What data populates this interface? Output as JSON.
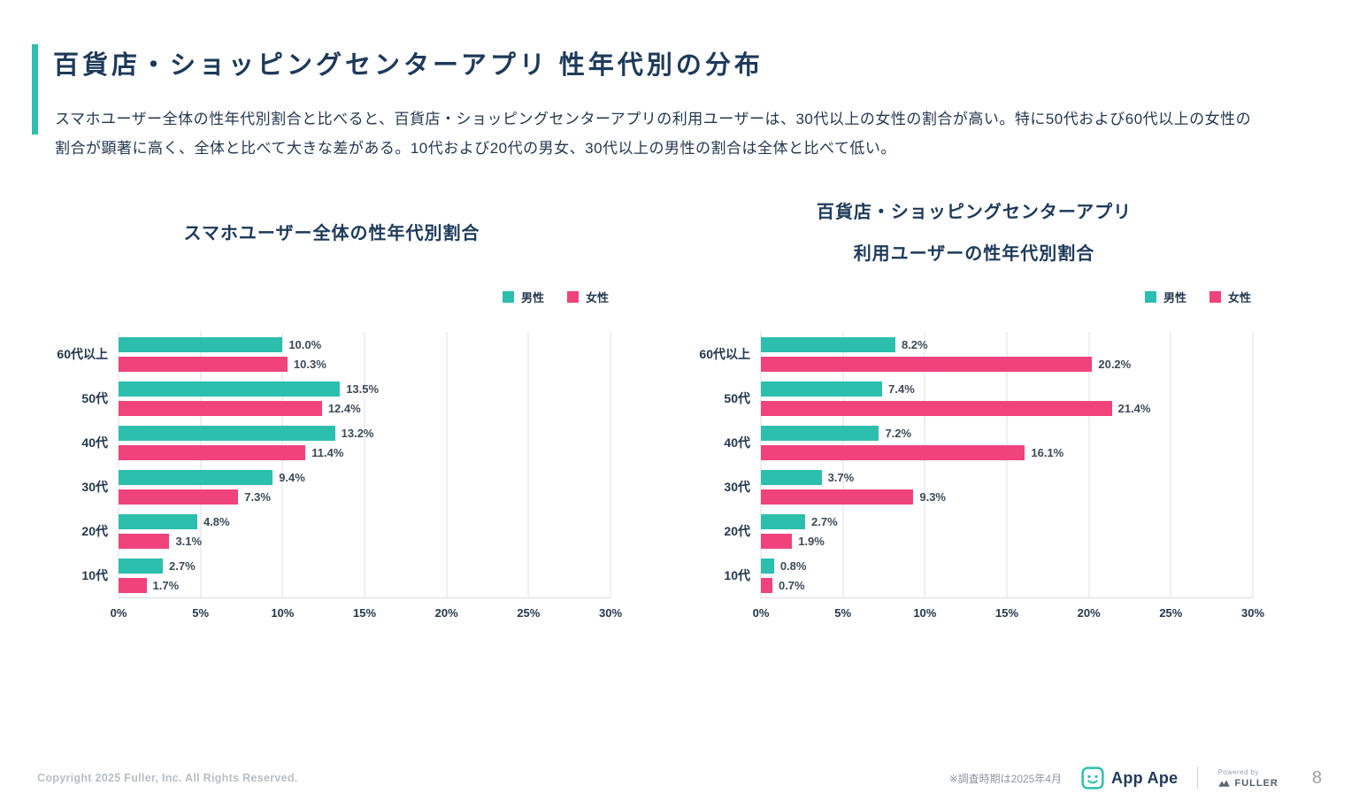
{
  "page": {
    "title": "百貨店・ショッピングセンターアプリ 性年代別の分布",
    "description": "スマホユーザー全体の性年代別割合と比べると、百貨店・ショッピングセンターアプリの利用ユーザーは、30代以上の女性の割合が高い。特に50代および60代以上の女性の割合が顕著に高く、全体と比べて大きな差がある。10代および20代の男女、30代以上の男性の割合は全体と比べて低い。"
  },
  "colors": {
    "male": "#2CBFAD",
    "female": "#F0437B",
    "accent": "#2CBFAD",
    "text": "#203A5A"
  },
  "chart_data": [
    {
      "type": "bar",
      "orientation": "horizontal",
      "title": "スマホユーザー全体の性年代別割合",
      "categories": [
        "60代以上",
        "50代",
        "40代",
        "30代",
        "20代",
        "10代"
      ],
      "series": [
        {
          "name": "男性",
          "values": [
            10.0,
            13.5,
            13.2,
            9.4,
            4.8,
            2.7
          ]
        },
        {
          "name": "女性",
          "values": [
            10.3,
            12.4,
            11.4,
            7.3,
            3.1,
            1.7
          ]
        }
      ],
      "xlim": [
        0,
        30
      ],
      "xticks": [
        "0%",
        "5%",
        "10%",
        "15%",
        "20%",
        "25%",
        "30%"
      ],
      "grid": true,
      "legend_position": "top-right",
      "value_label_format": "percent-one-decimal"
    },
    {
      "type": "bar",
      "orientation": "horizontal",
      "title": "百貨店・ショッピングセンターアプリ 利用ユーザーの性年代別割合",
      "title_line1": "百貨店・ショッピングセンターアプリ",
      "title_line2": "利用ユーザーの性年代別割合",
      "categories": [
        "60代以上",
        "50代",
        "40代",
        "30代",
        "20代",
        "10代"
      ],
      "series": [
        {
          "name": "男性",
          "values": [
            8.2,
            7.4,
            7.2,
            3.7,
            2.7,
            0.8
          ]
        },
        {
          "name": "女性",
          "values": [
            20.2,
            21.4,
            16.1,
            9.3,
            1.9,
            0.7
          ]
        }
      ],
      "xlim": [
        0,
        30
      ],
      "xticks": [
        "0%",
        "5%",
        "10%",
        "15%",
        "20%",
        "25%",
        "30%"
      ],
      "grid": true,
      "legend_position": "top-right",
      "value_label_format": "percent-one-decimal"
    }
  ],
  "footer": {
    "copyright": "Copyright 2025 Fuller, Inc. All Rights Reserved.",
    "survey_note": "※調査時期は2025年4月",
    "app_ape": "App Ape",
    "powered_by": "Powered by",
    "fuller": "FULLER",
    "page_number": "8"
  }
}
